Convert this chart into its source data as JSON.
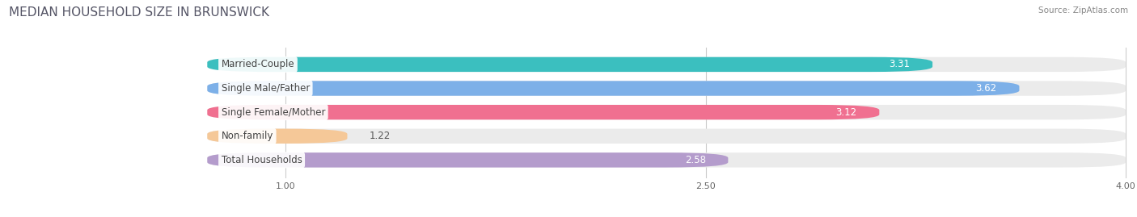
{
  "title": "MEDIAN HOUSEHOLD SIZE IN BRUNSWICK",
  "source": "Source: ZipAtlas.com",
  "categories": [
    "Married-Couple",
    "Single Male/Father",
    "Single Female/Mother",
    "Non-family",
    "Total Households"
  ],
  "values": [
    3.31,
    3.62,
    3.12,
    1.22,
    2.58
  ],
  "bar_colors": [
    "#3bbfbf",
    "#7db0e8",
    "#f07090",
    "#f5c898",
    "#b49ccc"
  ],
  "bg_bar_color": "#ebebeb",
  "xlim_start": 0.0,
  "xlim_end": 4.0,
  "xstart": 0.72,
  "xticks": [
    1.0,
    2.5,
    4.0
  ],
  "bar_height": 0.62,
  "label_fontsize": 8.5,
  "value_fontsize": 8.5,
  "title_fontsize": 11,
  "background_color": "#ffffff"
}
